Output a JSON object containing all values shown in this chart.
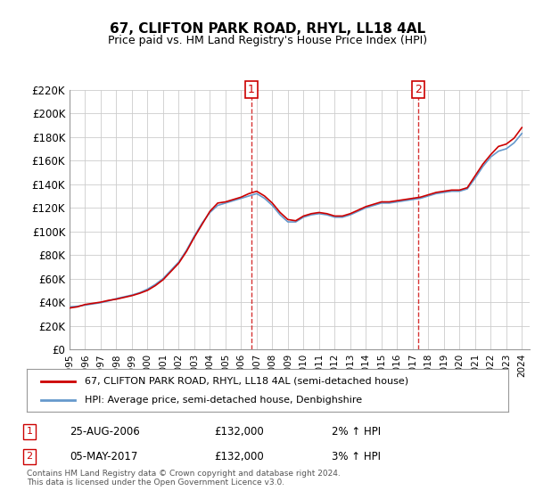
{
  "title": "67, CLIFTON PARK ROAD, RHYL, LL18 4AL",
  "subtitle": "Price paid vs. HM Land Registry's House Price Index (HPI)",
  "legend_line1": "67, CLIFTON PARK ROAD, RHYL, LL18 4AL (semi-detached house)",
  "legend_line2": "HPI: Average price, semi-detached house, Denbighshire",
  "annotation1_label": "1",
  "annotation1_date": "25-AUG-2006",
  "annotation1_price": "£132,000",
  "annotation1_hpi": "2% ↑ HPI",
  "annotation2_label": "2",
  "annotation2_date": "05-MAY-2017",
  "annotation2_price": "£132,000",
  "annotation2_hpi": "3% ↑ HPI",
  "footer": "Contains HM Land Registry data © Crown copyright and database right 2024.\nThis data is licensed under the Open Government Licence v3.0.",
  "ylim": [
    0,
    220000
  ],
  "yticks": [
    0,
    20000,
    40000,
    60000,
    80000,
    100000,
    120000,
    140000,
    160000,
    180000,
    200000,
    220000
  ],
  "ytick_labels": [
    "£0",
    "£20K",
    "£40K",
    "£60K",
    "£80K",
    "£100K",
    "£120K",
    "£140K",
    "£160K",
    "£180K",
    "£200K",
    "£220K"
  ],
  "red_line_color": "#cc0000",
  "blue_line_color": "#6699cc",
  "vline_color": "#cc0000",
  "marker_color": "#cc0000",
  "background_color": "#ffffff",
  "grid_color": "#cccccc",
  "vline1_x": 2006.65,
  "vline2_x": 2017.35,
  "hpi_x": [
    1995,
    1995.5,
    1996,
    1996.5,
    1997,
    1997.5,
    1998,
    1998.5,
    1999,
    1999.5,
    2000,
    2000.5,
    2001,
    2001.5,
    2002,
    2002.5,
    2003,
    2003.5,
    2004,
    2004.5,
    2005,
    2005.5,
    2006,
    2006.5,
    2007,
    2007.5,
    2008,
    2008.5,
    2009,
    2009.5,
    2010,
    2010.5,
    2011,
    2011.5,
    2012,
    2012.5,
    2013,
    2013.5,
    2014,
    2014.5,
    2015,
    2015.5,
    2016,
    2016.5,
    2017,
    2017.5,
    2018,
    2018.5,
    2019,
    2019.5,
    2020,
    2020.5,
    2021,
    2021.5,
    2022,
    2022.5,
    2023,
    2023.5,
    2024
  ],
  "hpi_y": [
    36000,
    36500,
    37500,
    38500,
    39500,
    41000,
    43000,
    44500,
    46000,
    48000,
    51000,
    55000,
    60000,
    67000,
    74000,
    84000,
    96000,
    107000,
    116000,
    122000,
    124000,
    126000,
    128000,
    130000,
    132000,
    128000,
    122000,
    114000,
    108000,
    108000,
    112000,
    114000,
    115000,
    114000,
    112000,
    112000,
    114000,
    117000,
    120000,
    122000,
    124000,
    124000,
    125000,
    126000,
    127000,
    128000,
    130000,
    132000,
    133000,
    134000,
    134000,
    136000,
    145000,
    155000,
    163000,
    168000,
    170000,
    175000,
    183000
  ],
  "price_x": [
    1995,
    1995.5,
    1996,
    1996.5,
    1997,
    1997.5,
    1998,
    1998.5,
    1999,
    1999.5,
    2000,
    2000.5,
    2001,
    2001.5,
    2002,
    2002.5,
    2003,
    2003.5,
    2004,
    2004.5,
    2005,
    2005.5,
    2006,
    2006.5,
    2007,
    2007.5,
    2008,
    2008.5,
    2009,
    2009.5,
    2010,
    2010.5,
    2011,
    2011.5,
    2012,
    2012.5,
    2013,
    2013.5,
    2014,
    2014.5,
    2015,
    2015.5,
    2016,
    2016.5,
    2017,
    2017.5,
    2018,
    2018.5,
    2019,
    2019.5,
    2020,
    2020.5,
    2021,
    2021.5,
    2022,
    2022.5,
    2023,
    2023.5,
    2024
  ],
  "price_y": [
    35000,
    36000,
    38000,
    39000,
    40000,
    41500,
    42500,
    44000,
    45500,
    47500,
    50000,
    54000,
    59000,
    66000,
    73000,
    83000,
    95000,
    106000,
    117000,
    124000,
    125000,
    127000,
    129000,
    132000,
    134000,
    130000,
    124000,
    116000,
    110000,
    109000,
    113000,
    115000,
    116000,
    115000,
    113000,
    113000,
    115000,
    118000,
    121000,
    123000,
    125000,
    125000,
    126000,
    127000,
    128000,
    129000,
    131000,
    133000,
    134000,
    135000,
    135000,
    137000,
    147000,
    157000,
    165000,
    172000,
    174000,
    179000,
    188000
  ],
  "xlim": [
    1995,
    2024.5
  ],
  "xticks": [
    1995,
    1996,
    1997,
    1998,
    1999,
    2000,
    2001,
    2002,
    2003,
    2004,
    2005,
    2006,
    2007,
    2008,
    2009,
    2010,
    2011,
    2012,
    2013,
    2014,
    2015,
    2016,
    2017,
    2018,
    2019,
    2020,
    2021,
    2022,
    2023,
    2024
  ]
}
